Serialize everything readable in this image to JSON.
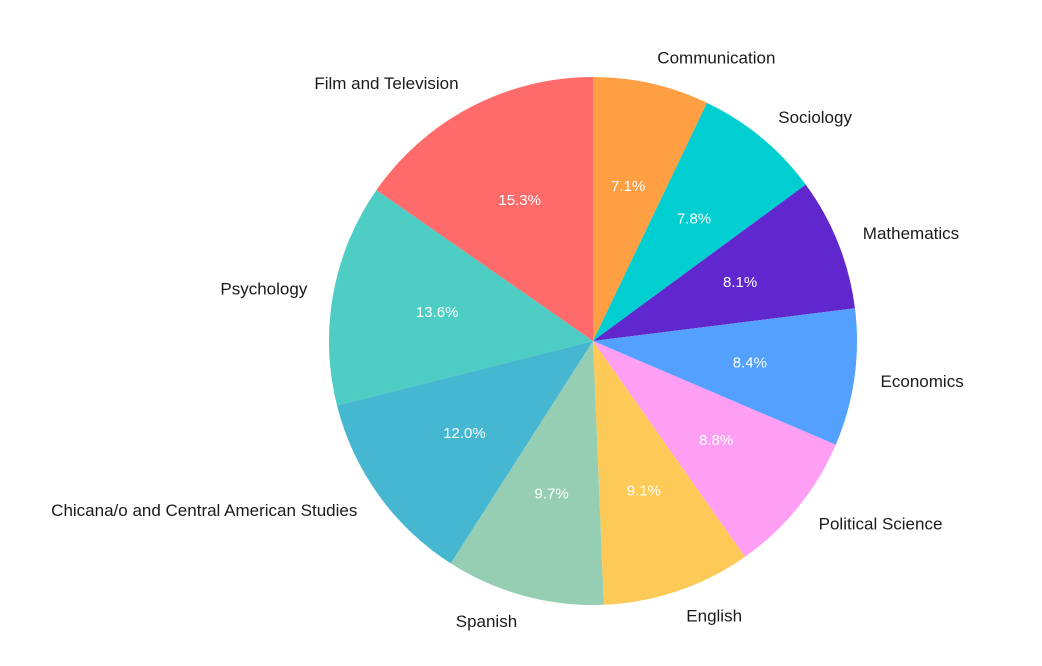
{
  "chart_data": {
    "type": "pie",
    "title": "",
    "start": "top",
    "direction": "clockwise",
    "slices": [
      {
        "label": "Communication",
        "value": 7.1,
        "value_label": "7.1%",
        "color": "#FF9F43"
      },
      {
        "label": "Sociology",
        "value": 7.8,
        "value_label": "7.8%",
        "color": "#00CED1"
      },
      {
        "label": "Mathematics",
        "value": 8.1,
        "value_label": "8.1%",
        "color": "#5F27CD"
      },
      {
        "label": "Economics",
        "value": 8.4,
        "value_label": "8.4%",
        "color": "#54A0FF"
      },
      {
        "label": "Political Science",
        "value": 8.8,
        "value_label": "8.8%",
        "color": "#FF9FF3"
      },
      {
        "label": "English",
        "value": 9.1,
        "value_label": "9.1%",
        "color": "#FECA57"
      },
      {
        "label": "Spanish",
        "value": 9.7,
        "value_label": "9.7%",
        "color": "#96CEB4"
      },
      {
        "label": "Chicana/o and Central American Studies",
        "value": 12.0,
        "value_label": "12.0%",
        "color": "#45B7D1"
      },
      {
        "label": "Psychology",
        "value": 13.6,
        "value_label": "13.6%",
        "color": "#4ECDC4"
      },
      {
        "label": "Film and Television",
        "value": 15.3,
        "value_label": "15.3%",
        "color": "#FF6B6B"
      }
    ]
  }
}
